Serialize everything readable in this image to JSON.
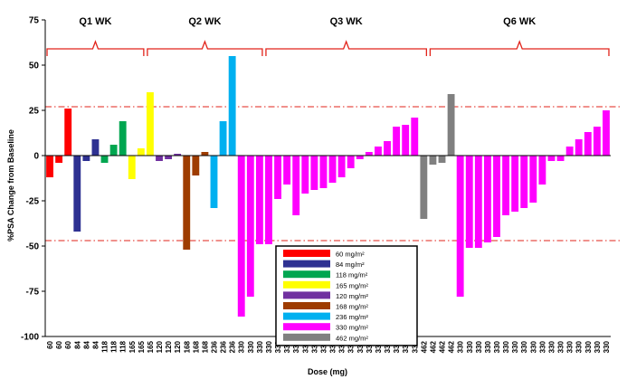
{
  "chart_data": {
    "type": "bar",
    "xlabel": "Dose (mg)",
    "ylabel": "%PSA Change from Baseline",
    "ylim": [
      -100,
      75
    ],
    "yticks": [
      -100,
      -75,
      -50,
      -25,
      0,
      25,
      50,
      75
    ],
    "reference_lines": [
      27,
      -47
    ],
    "groups": [
      {
        "label": "Q1 WK",
        "start": 0,
        "end": 10
      },
      {
        "label": "Q2 WK",
        "start": 11,
        "end": 23
      },
      {
        "label": "Q3 WK",
        "start": 24,
        "end": 41
      },
      {
        "label": "Q6 WK",
        "start": 42,
        "end": 61
      }
    ],
    "legend": [
      {
        "label": "60 mg/m²",
        "color": "#ff0000"
      },
      {
        "label": "84 mg/m²",
        "color": "#2e3192"
      },
      {
        "label": "118 mg/m²",
        "color": "#00a650"
      },
      {
        "label": "165 mg/m²",
        "color": "#ffff00"
      },
      {
        "label": "120 mg/m²",
        "color": "#7030a0"
      },
      {
        "label": "168 mg/m²",
        "color": "#9e3c00"
      },
      {
        "label": "236 mg/m²",
        "color": "#00b0f0"
      },
      {
        "label": "330 mg/m²",
        "color": "#ff00ff"
      },
      {
        "label": "462 mg/m²",
        "color": "#808080"
      }
    ],
    "bars": [
      {
        "x": "60",
        "value": -12,
        "color": "#ff0000"
      },
      {
        "x": "60",
        "value": -4,
        "color": "#ff0000"
      },
      {
        "x": "60",
        "value": 26,
        "color": "#ff0000"
      },
      {
        "x": "84",
        "value": -42,
        "color": "#2e3192"
      },
      {
        "x": "84",
        "value": -3,
        "color": "#2e3192"
      },
      {
        "x": "84",
        "value": 9,
        "color": "#2e3192"
      },
      {
        "x": "118",
        "value": -4,
        "color": "#00a650"
      },
      {
        "x": "118",
        "value": 6,
        "color": "#00a650"
      },
      {
        "x": "118",
        "value": 19,
        "color": "#00a650"
      },
      {
        "x": "165",
        "value": -13,
        "color": "#ffff00"
      },
      {
        "x": "165",
        "value": 4,
        "color": "#ffff00"
      },
      {
        "x": "165",
        "value": 35,
        "color": "#ffff00"
      },
      {
        "x": "120",
        "value": -3,
        "color": "#7030a0"
      },
      {
        "x": "120",
        "value": -2,
        "color": "#7030a0"
      },
      {
        "x": "120",
        "value": 1,
        "color": "#7030a0"
      },
      {
        "x": "168",
        "value": -52,
        "color": "#9e3c00"
      },
      {
        "x": "168",
        "value": -11,
        "color": "#9e3c00"
      },
      {
        "x": "168",
        "value": 2,
        "color": "#9e3c00"
      },
      {
        "x": "236",
        "value": -29,
        "color": "#00b0f0"
      },
      {
        "x": "236",
        "value": 19,
        "color": "#00b0f0"
      },
      {
        "x": "236",
        "value": 55,
        "color": "#00b0f0"
      },
      {
        "x": "330",
        "value": -89,
        "color": "#ff00ff"
      },
      {
        "x": "330",
        "value": -78,
        "color": "#ff00ff"
      },
      {
        "x": "330",
        "value": -49,
        "color": "#ff00ff"
      },
      {
        "x": "330",
        "value": -49,
        "color": "#ff00ff"
      },
      {
        "x": "330",
        "value": -24,
        "color": "#ff00ff"
      },
      {
        "x": "330",
        "value": -16,
        "color": "#ff00ff"
      },
      {
        "x": "330",
        "value": -33,
        "color": "#ff00ff"
      },
      {
        "x": "330",
        "value": -21,
        "color": "#ff00ff"
      },
      {
        "x": "330",
        "value": -19,
        "color": "#ff00ff"
      },
      {
        "x": "330",
        "value": -18,
        "color": "#ff00ff"
      },
      {
        "x": "330",
        "value": -15,
        "color": "#ff00ff"
      },
      {
        "x": "330",
        "value": -12,
        "color": "#ff00ff"
      },
      {
        "x": "330",
        "value": -7,
        "color": "#ff00ff"
      },
      {
        "x": "330",
        "value": -2,
        "color": "#ff00ff"
      },
      {
        "x": "330",
        "value": 2,
        "color": "#ff00ff"
      },
      {
        "x": "330",
        "value": 5,
        "color": "#ff00ff"
      },
      {
        "x": "330",
        "value": 8,
        "color": "#ff00ff"
      },
      {
        "x": "330",
        "value": 16,
        "color": "#ff00ff"
      },
      {
        "x": "330",
        "value": 17,
        "color": "#ff00ff"
      },
      {
        "x": "330",
        "value": 21,
        "color": "#ff00ff"
      },
      {
        "x": "462",
        "value": -35,
        "color": "#808080"
      },
      {
        "x": "462",
        "value": -5,
        "color": "#808080"
      },
      {
        "x": "462",
        "value": -4,
        "color": "#808080"
      },
      {
        "x": "462",
        "value": 34,
        "color": "#808080"
      },
      {
        "x": "330",
        "value": -78,
        "color": "#ff00ff"
      },
      {
        "x": "330",
        "value": -51,
        "color": "#ff00ff"
      },
      {
        "x": "330",
        "value": -51,
        "color": "#ff00ff"
      },
      {
        "x": "330",
        "value": -48,
        "color": "#ff00ff"
      },
      {
        "x": "330",
        "value": -45,
        "color": "#ff00ff"
      },
      {
        "x": "330",
        "value": -33,
        "color": "#ff00ff"
      },
      {
        "x": "330",
        "value": -31,
        "color": "#ff00ff"
      },
      {
        "x": "330",
        "value": -29,
        "color": "#ff00ff"
      },
      {
        "x": "330",
        "value": -26,
        "color": "#ff00ff"
      },
      {
        "x": "330",
        "value": -16,
        "color": "#ff00ff"
      },
      {
        "x": "330",
        "value": -3,
        "color": "#ff00ff"
      },
      {
        "x": "330",
        "value": -3,
        "color": "#ff00ff"
      },
      {
        "x": "330",
        "value": 5,
        "color": "#ff00ff"
      },
      {
        "x": "330",
        "value": 9,
        "color": "#ff00ff"
      },
      {
        "x": "330",
        "value": 13,
        "color": "#ff00ff"
      },
      {
        "x": "330",
        "value": 16,
        "color": "#ff00ff"
      },
      {
        "x": "330",
        "value": 25,
        "color": "#ff00ff"
      }
    ]
  }
}
